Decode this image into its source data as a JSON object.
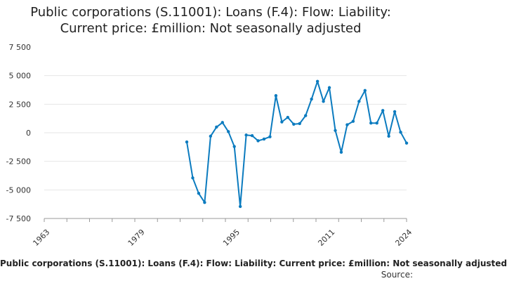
{
  "title_line1": "Public corporations (S.11001): Loans (F.4): Flow: Liability:",
  "title_line2": "Current price: £million: Not seasonally adjusted",
  "footer_series_label": "Public corporations (S.11001): Loans (F.4): Flow: Liability: Current price: £million: Not seasonally adjusted",
  "source_label": "Source:",
  "colors": {
    "line": "#0b7bbf",
    "grid": "#e6e6e6",
    "axis": "#999999"
  },
  "chart_data": {
    "type": "line",
    "title": "Public corporations (S.11001): Loans (F.4): Flow: Liability: Current price: £million: Not seasonally adjusted",
    "xlabel": "",
    "ylabel": "",
    "xlim": [
      1963,
      2024
    ],
    "ylim": [
      -7500,
      7500
    ],
    "x_ticks": [
      "1963",
      "1979",
      "1995",
      "2011",
      "2024"
    ],
    "y_ticks": [
      "7 500",
      "5 000",
      "2 500",
      "0",
      "-2 500",
      "-5 000",
      "-7 500"
    ],
    "grid": true,
    "legend": "none",
    "series": [
      {
        "x": [
          1987,
          1988,
          1989,
          1990,
          1991,
          1992,
          1993,
          1994,
          1995,
          1996,
          1997,
          1998,
          1999,
          2000,
          2001,
          2002,
          2003,
          2004,
          2005,
          2006,
          2007,
          2008,
          2009,
          2010,
          2011,
          2012,
          2013,
          2014,
          2015,
          2016,
          2017,
          2018,
          2019,
          2020,
          2021,
          2022,
          2023,
          2024
        ],
        "values": [
          -800,
          -3950,
          -5300,
          -6100,
          -300,
          500,
          900,
          100,
          -1200,
          -6450,
          -200,
          -250,
          -700,
          -550,
          -350,
          3250,
          950,
          1350,
          750,
          800,
          1500,
          2950,
          4500,
          2750,
          3950,
          200,
          -1700,
          700,
          1000,
          2750,
          3700,
          850,
          850,
          1950,
          -300,
          1850,
          50,
          -900
        ]
      }
    ]
  }
}
